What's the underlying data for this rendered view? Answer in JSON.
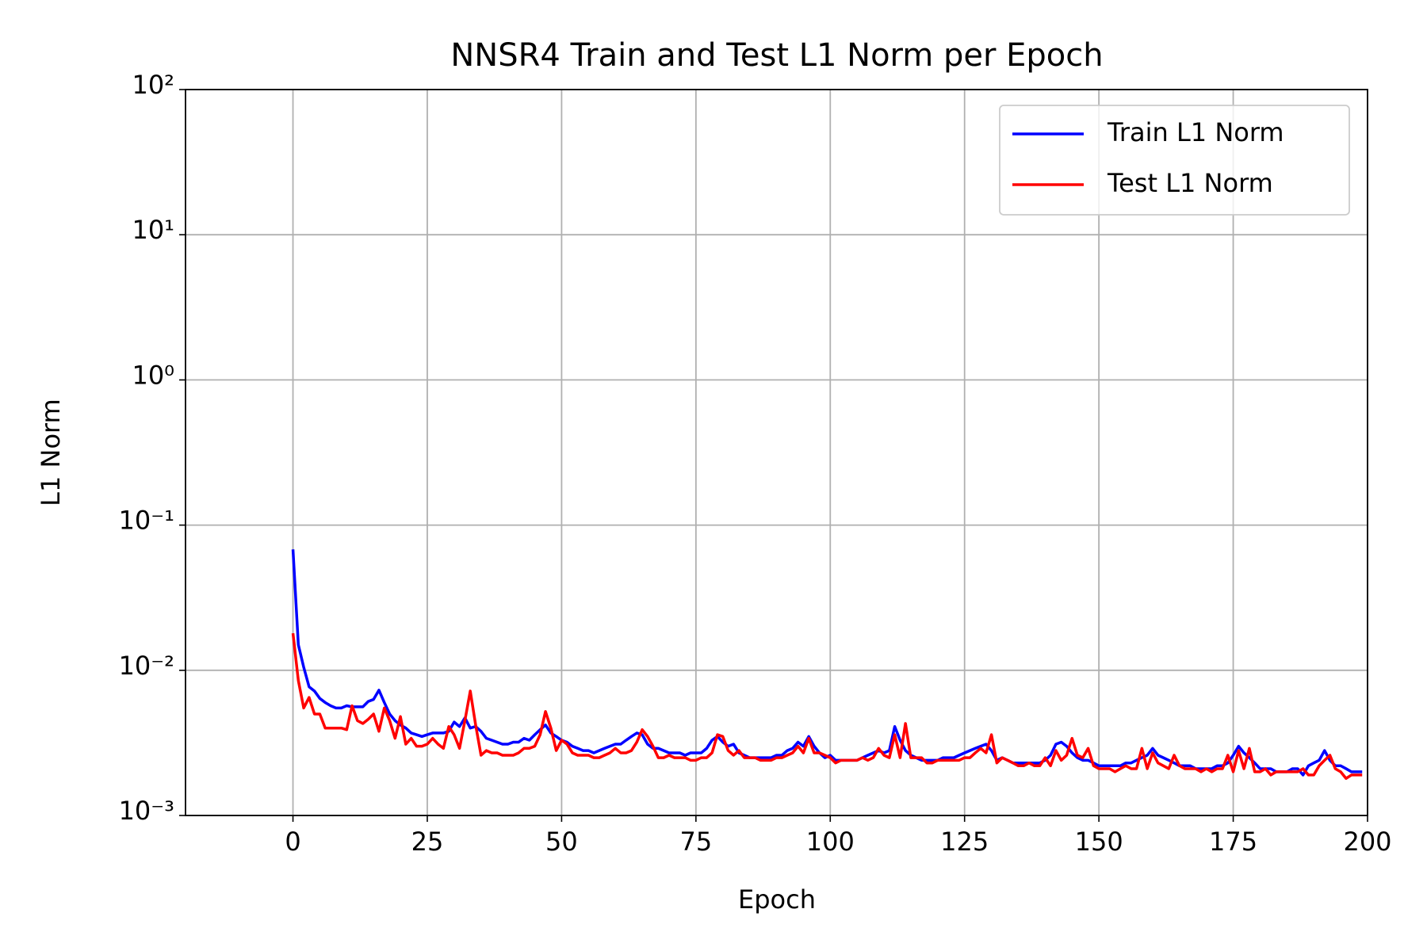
{
  "chart_data": {
    "type": "line",
    "title": "NNSR4 Train and Test L1 Norm per Epoch",
    "x_label": "Epoch",
    "y_label": "L1 Norm",
    "yscale": "log",
    "grid": true,
    "legend": "upper right",
    "xlim": [
      -20,
      200
    ],
    "xticks": [
      0,
      25,
      50,
      75,
      100,
      125,
      150,
      175,
      200
    ],
    "ylim": [
      0.001,
      100
    ],
    "yticks": [
      {
        "value": 0.001,
        "label": "10⁻³"
      },
      {
        "value": 0.01,
        "label": "10⁻²"
      },
      {
        "value": 0.1,
        "label": "10⁻¹"
      },
      {
        "value": 1,
        "label": "10⁰"
      },
      {
        "value": 10,
        "label": "10¹"
      },
      {
        "value": 100,
        "label": "10²"
      }
    ],
    "x": [
      0,
      1,
      2,
      3,
      4,
      5,
      6,
      7,
      8,
      9,
      10,
      11,
      12,
      13,
      14,
      15,
      16,
      17,
      18,
      19,
      20,
      21,
      22,
      23,
      24,
      25,
      26,
      27,
      28,
      29,
      30,
      31,
      32,
      33,
      34,
      35,
      36,
      37,
      38,
      39,
      40,
      41,
      42,
      43,
      44,
      45,
      46,
      47,
      48,
      49,
      50,
      51,
      52,
      53,
      54,
      55,
      56,
      57,
      58,
      59,
      60,
      61,
      62,
      63,
      64,
      65,
      66,
      67,
      68,
      69,
      70,
      71,
      72,
      73,
      74,
      75,
      76,
      77,
      78,
      79,
      80,
      81,
      82,
      83,
      84,
      85,
      86,
      87,
      88,
      89,
      90,
      91,
      92,
      93,
      94,
      95,
      96,
      97,
      98,
      99,
      100,
      101,
      102,
      103,
      104,
      105,
      106,
      107,
      108,
      109,
      110,
      111,
      112,
      113,
      114,
      115,
      116,
      117,
      118,
      119,
      120,
      121,
      122,
      123,
      124,
      125,
      126,
      127,
      128,
      129,
      130,
      131,
      132,
      133,
      134,
      135,
      136,
      137,
      138,
      139,
      140,
      141,
      142,
      143,
      144,
      145,
      146,
      147,
      148,
      149,
      150,
      151,
      152,
      153,
      154,
      155,
      156,
      157,
      158,
      159,
      160,
      161,
      162,
      163,
      164,
      165,
      166,
      167,
      168,
      169,
      170,
      171,
      172,
      173,
      174,
      175,
      176,
      177,
      178,
      179,
      180,
      181,
      182,
      183,
      184,
      185,
      186,
      187,
      188,
      189,
      190,
      191,
      192,
      193,
      194,
      195,
      196,
      197,
      198,
      199
    ],
    "series": [
      {
        "name": "Train L1 Norm",
        "color": "#0000ff",
        "values": [
          0.068,
          0.015,
          0.0105,
          0.0077,
          0.0072,
          0.0064,
          0.006,
          0.0057,
          0.0055,
          0.0055,
          0.0057,
          0.0056,
          0.0056,
          0.0056,
          0.0061,
          0.0063,
          0.0073,
          0.006,
          0.005,
          0.0045,
          0.0042,
          0.004,
          0.0037,
          0.0036,
          0.0035,
          0.0036,
          0.0037,
          0.0037,
          0.0037,
          0.0038,
          0.0044,
          0.0041,
          0.0047,
          0.004,
          0.0041,
          0.0038,
          0.0034,
          0.0033,
          0.0032,
          0.0031,
          0.0031,
          0.0032,
          0.0032,
          0.0034,
          0.0033,
          0.0036,
          0.0039,
          0.0042,
          0.0037,
          0.0035,
          0.0033,
          0.0032,
          0.003,
          0.0029,
          0.0028,
          0.0028,
          0.0027,
          0.0028,
          0.0029,
          0.003,
          0.0031,
          0.0031,
          0.0033,
          0.0035,
          0.0037,
          0.0036,
          0.0031,
          0.0029,
          0.0029,
          0.0028,
          0.0027,
          0.0027,
          0.0027,
          0.0026,
          0.0027,
          0.0027,
          0.0027,
          0.0029,
          0.0033,
          0.0035,
          0.0032,
          0.003,
          0.0031,
          0.0027,
          0.0026,
          0.0025,
          0.0025,
          0.0025,
          0.0025,
          0.0025,
          0.0026,
          0.0026,
          0.0028,
          0.0029,
          0.0032,
          0.003,
          0.0035,
          0.003,
          0.0027,
          0.0025,
          0.0026,
          0.0024,
          0.0024,
          0.0024,
          0.0024,
          0.0024,
          0.0025,
          0.0026,
          0.0027,
          0.0028,
          0.0027,
          0.0028,
          0.0041,
          0.0033,
          0.0028,
          0.0026,
          0.0025,
          0.0024,
          0.0024,
          0.0024,
          0.0024,
          0.0025,
          0.0025,
          0.0025,
          0.0026,
          0.0027,
          0.0028,
          0.0029,
          0.003,
          0.0031,
          0.0028,
          0.0024,
          0.0025,
          0.0024,
          0.0023,
          0.0023,
          0.0023,
          0.0023,
          0.0023,
          0.0023,
          0.0024,
          0.0026,
          0.0031,
          0.0032,
          0.003,
          0.0027,
          0.0025,
          0.0024,
          0.0024,
          0.0023,
          0.0022,
          0.0022,
          0.0022,
          0.0022,
          0.0022,
          0.0023,
          0.0023,
          0.0024,
          0.0025,
          0.0026,
          0.0029,
          0.0026,
          0.0025,
          0.0024,
          0.0023,
          0.0022,
          0.0022,
          0.0022,
          0.0021,
          0.0021,
          0.0021,
          0.0021,
          0.0022,
          0.0022,
          0.0023,
          0.0026,
          0.003,
          0.0027,
          0.0025,
          0.0023,
          0.0021,
          0.0021,
          0.0021,
          0.002,
          0.002,
          0.002,
          0.0021,
          0.0021,
          0.0019,
          0.0022,
          0.0023,
          0.0024,
          0.0028,
          0.0024,
          0.0022,
          0.0022,
          0.0021,
          0.002,
          0.002,
          0.002
        ]
      },
      {
        "name": "Test L1 Norm",
        "color": "#ff0000",
        "values": [
          0.018,
          0.0085,
          0.0055,
          0.0065,
          0.005,
          0.005,
          0.004,
          0.004,
          0.004,
          0.004,
          0.0039,
          0.0057,
          0.0045,
          0.0043,
          0.0046,
          0.005,
          0.0038,
          0.0055,
          0.0045,
          0.0034,
          0.0048,
          0.0031,
          0.0034,
          0.003,
          0.003,
          0.0031,
          0.0034,
          0.0031,
          0.0029,
          0.0041,
          0.0036,
          0.0029,
          0.0045,
          0.0072,
          0.0042,
          0.0026,
          0.0028,
          0.0027,
          0.0027,
          0.0026,
          0.0026,
          0.0026,
          0.0027,
          0.0029,
          0.0029,
          0.003,
          0.0036,
          0.0052,
          0.004,
          0.0028,
          0.0033,
          0.0031,
          0.0027,
          0.0026,
          0.0026,
          0.0026,
          0.0025,
          0.0025,
          0.0026,
          0.0027,
          0.0029,
          0.0027,
          0.0027,
          0.0028,
          0.0032,
          0.0039,
          0.0035,
          0.003,
          0.0025,
          0.0025,
          0.0026,
          0.0025,
          0.0025,
          0.0025,
          0.0024,
          0.0024,
          0.0025,
          0.0025,
          0.0027,
          0.0036,
          0.0035,
          0.0028,
          0.0026,
          0.0028,
          0.0025,
          0.0025,
          0.0025,
          0.0024,
          0.0024,
          0.0024,
          0.0025,
          0.0025,
          0.0026,
          0.0027,
          0.003,
          0.0027,
          0.0034,
          0.0027,
          0.0027,
          0.0026,
          0.0025,
          0.0023,
          0.0024,
          0.0024,
          0.0024,
          0.0024,
          0.0025,
          0.0024,
          0.0025,
          0.0029,
          0.0026,
          0.0025,
          0.0036,
          0.0025,
          0.0043,
          0.0025,
          0.0025,
          0.0025,
          0.0023,
          0.0023,
          0.0024,
          0.0024,
          0.0024,
          0.0024,
          0.0024,
          0.0025,
          0.0025,
          0.0027,
          0.0029,
          0.0027,
          0.0036,
          0.0023,
          0.0025,
          0.0024,
          0.0023,
          0.0022,
          0.0022,
          0.0023,
          0.0022,
          0.0022,
          0.0025,
          0.0022,
          0.0028,
          0.0024,
          0.0026,
          0.0034,
          0.0026,
          0.0025,
          0.0029,
          0.0022,
          0.0021,
          0.0021,
          0.0021,
          0.002,
          0.0021,
          0.0022,
          0.0021,
          0.0021,
          0.0029,
          0.0021,
          0.0027,
          0.0023,
          0.0022,
          0.0021,
          0.0026,
          0.0022,
          0.0021,
          0.0021,
          0.0021,
          0.002,
          0.0021,
          0.002,
          0.0021,
          0.0021,
          0.0026,
          0.002,
          0.0028,
          0.0021,
          0.0029,
          0.002,
          0.002,
          0.0021,
          0.0019,
          0.002,
          0.002,
          0.002,
          0.002,
          0.002,
          0.0021,
          0.0019,
          0.0019,
          0.0022,
          0.0024,
          0.0026,
          0.0021,
          0.002,
          0.0018,
          0.0019,
          0.0019,
          0.0019
        ]
      }
    ]
  }
}
